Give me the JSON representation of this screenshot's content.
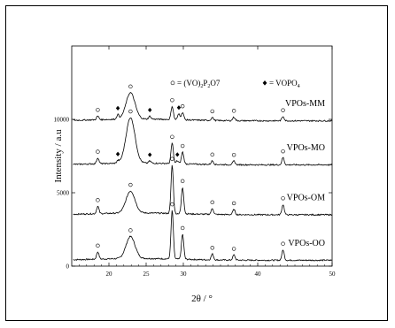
{
  "chart_data": {
    "type": "line",
    "title": "",
    "xlabel": "2θ / °",
    "ylabel": "Intensity / a.u",
    "xlim": [
      15,
      50
    ],
    "ylim": [
      0,
      15000
    ],
    "x_ticks": [
      20,
      25,
      30,
      40,
      50
    ],
    "y_tick_labels": [
      {
        "value": 0,
        "label": "0"
      },
      {
        "value": 5000,
        "label": "5000"
      },
      {
        "value": 10000,
        "label": "10000"
      }
    ],
    "legend": {
      "circle_text": "= (VO)",
      "circle_sub": "2",
      "circle_mid": "P",
      "circle_sub2": "2",
      "circle_tail": "O7",
      "diamond_text": "= VOPO",
      "diamond_sub": "4",
      "circle_marker": "o",
      "diamond_marker": "◆"
    },
    "series": [
      {
        "name": "VPOs-OO",
        "baseline": 400,
        "peaks": [
          [
            18.5,
            500
          ],
          [
            22.9,
            1500
          ],
          [
            28.5,
            3300
          ],
          [
            29.9,
            1700
          ],
          [
            33.9,
            400
          ],
          [
            36.8,
            350
          ],
          [
            43.4,
            700
          ]
        ],
        "circle_markers": [
          18.5,
          22.9,
          28.5,
          29.9,
          33.9,
          36.8,
          43.4
        ],
        "diamond_markers": []
      },
      {
        "name": "VPOs-OM",
        "baseline": 3500,
        "peaks": [
          [
            18.5,
            500
          ],
          [
            22.9,
            1500
          ],
          [
            28.5,
            3300
          ],
          [
            29.9,
            1800
          ],
          [
            33.9,
            400
          ],
          [
            36.8,
            350
          ],
          [
            43.4,
            700
          ]
        ],
        "circle_markers": [
          18.5,
          22.9,
          28.5,
          29.9,
          33.9,
          36.8,
          43.4
        ],
        "diamond_markers": []
      },
      {
        "name": "VPOs-MO",
        "baseline": 6900,
        "peaks": [
          [
            18.5,
            400
          ],
          [
            21.2,
            150
          ],
          [
            22.9,
            3100
          ],
          [
            25.5,
            150
          ],
          [
            28.5,
            1400
          ],
          [
            29.2,
            200
          ],
          [
            29.9,
            800
          ],
          [
            33.9,
            250
          ],
          [
            36.8,
            250
          ],
          [
            43.4,
            500
          ]
        ],
        "circle_markers": [
          18.5,
          22.9,
          28.5,
          29.9,
          33.9,
          36.8,
          43.4
        ],
        "diamond_markers": [
          21.2,
          25.5,
          29.2
        ]
      },
      {
        "name": "VPOs-MM",
        "baseline": 9900,
        "peaks": [
          [
            18.5,
            250
          ],
          [
            21.2,
            300
          ],
          [
            22.9,
            1800
          ],
          [
            25.5,
            200
          ],
          [
            28.5,
            900
          ],
          [
            29.4,
            400
          ],
          [
            29.9,
            500
          ],
          [
            33.9,
            200
          ],
          [
            36.8,
            250
          ],
          [
            43.4,
            300
          ]
        ],
        "circle_markers": [
          18.5,
          22.9,
          28.5,
          29.9,
          33.9,
          36.8,
          43.4
        ],
        "diamond_markers": [
          21.2,
          25.5,
          29.4
        ]
      }
    ],
    "grid": false,
    "line_color": "#000000"
  }
}
